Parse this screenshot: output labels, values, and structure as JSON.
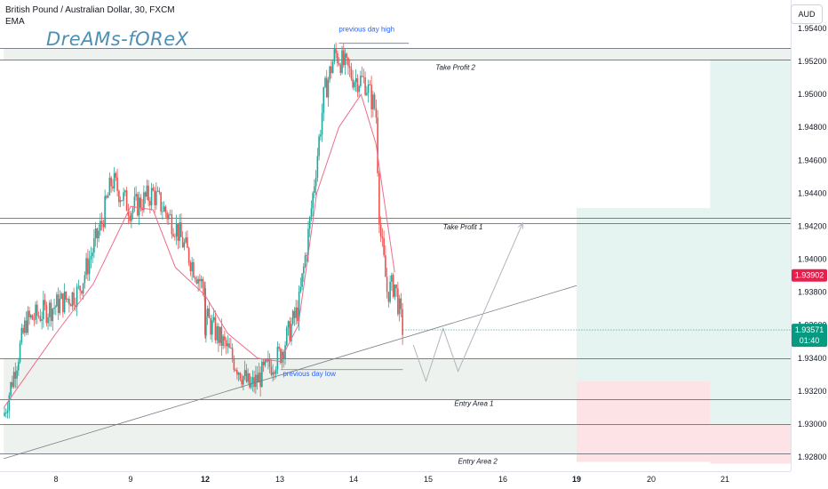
{
  "header": {
    "title": "British Pound / Australian Dollar, 30, FXCM",
    "indicator": "EMA",
    "watermark": "DreAMs-fOReX",
    "currency": "AUD"
  },
  "chart_data": {
    "type": "candlestick",
    "symbol": "GBPAUD",
    "timeframe": "30",
    "x_ticks": [
      {
        "label": "8",
        "day": 8,
        "bold": false
      },
      {
        "label": "9",
        "day": 9,
        "bold": false
      },
      {
        "label": "12",
        "day": 12,
        "bold": true
      },
      {
        "label": "13",
        "day": 13,
        "bold": false
      },
      {
        "label": "14",
        "day": 14,
        "bold": false
      },
      {
        "label": "15",
        "day": 15,
        "bold": false
      },
      {
        "label": "16",
        "day": 16,
        "bold": false
      },
      {
        "label": "19",
        "day": 19,
        "bold": true
      },
      {
        "label": "20",
        "day": 20,
        "bold": false
      },
      {
        "label": "21",
        "day": 21,
        "bold": false
      }
    ],
    "y_ticks": [
      "1.92800",
      "1.93000",
      "1.93200",
      "1.93400",
      "1.93600",
      "1.93800",
      "1.94000",
      "1.94200",
      "1.94400",
      "1.94600",
      "1.94800",
      "1.95000",
      "1.95200",
      "1.95400"
    ],
    "y_range": [
      1.9272,
      1.9548
    ],
    "price_badges": [
      {
        "value": "1.93902",
        "color": "#e91e4d"
      },
      {
        "value": "1.93571",
        "subtext": "01:40",
        "color": "#089981"
      }
    ],
    "horizontal_levels": [
      1.9528,
      1.9521,
      1.9425,
      1.9422,
      1.934,
      1.9315,
      1.93,
      1.9282
    ],
    "labels": [
      {
        "text": "previous day high",
        "day": 13.8,
        "price": 1.9538,
        "color": "#2962ff"
      },
      {
        "text": "previous day low",
        "day": 13.04,
        "price": 1.9329,
        "color": "#2962ff"
      },
      {
        "text": "Take Profit 2",
        "day": 15.1,
        "price": 1.9515,
        "color": "#131722"
      },
      {
        "text": "Take Profit 1",
        "day": 15.2,
        "price": 1.9418,
        "color": "#131722"
      },
      {
        "text": "Entry Area 1",
        "day": 15.35,
        "price": 1.9311,
        "color": "#131722"
      },
      {
        "text": "Entry Area 2",
        "day": 15.4,
        "price": 1.9276,
        "color": "#131722"
      }
    ],
    "zones": [
      {
        "day_from": 7.3,
        "day_to": 21.9,
        "price_from": 1.9521,
        "price_to": 1.9528,
        "color": "#eef2ee"
      },
      {
        "day_from": 7.3,
        "day_to": 21.9,
        "price_from": 1.9315,
        "price_to": 1.934,
        "color": "#eef2ee"
      },
      {
        "day_from": 7.3,
        "day_to": 21.9,
        "price_from": 1.9282,
        "price_to": 1.93,
        "color": "#eef2ee"
      },
      {
        "day_from": 18.95,
        "day_to": 20.8,
        "price_from": 1.9326,
        "price_to": 1.9431,
        "color": "#e6f4f1"
      },
      {
        "day_from": 18.95,
        "day_to": 20.8,
        "price_from": 1.9277,
        "price_to": 1.9326,
        "color": "#fde3e6"
      },
      {
        "day_from": 20.8,
        "day_to": 21.9,
        "price_from": 1.93,
        "price_to": 1.9521,
        "color": "#e6f4f1"
      },
      {
        "day_from": 20.8,
        "day_to": 21.9,
        "price_from": 1.9276,
        "price_to": 1.93,
        "color": "#fde3e6"
      }
    ],
    "trendlines": [
      {
        "from": {
          "day": 7.3,
          "price": 1.9279
        },
        "to": {
          "day": 18.45,
          "price": 1.9384
        },
        "color": "#787b86"
      },
      {
        "from": {
          "day": 13.01,
          "price": 1.9333
        },
        "to": {
          "day": 14.66,
          "price": 1.9333
        },
        "color": "#787b86"
      },
      {
        "from": {
          "day": 13.8,
          "price": 1.9531
        },
        "to": {
          "day": 14.74,
          "price": 1.9531
        },
        "color": "#787b86"
      }
    ],
    "projection_path": [
      {
        "day": 14.8,
        "price": 1.9348
      },
      {
        "day": 14.97,
        "price": 1.9326
      },
      {
        "day": 15.2,
        "price": 1.9358
      },
      {
        "day": 15.4,
        "price": 1.9332
      },
      {
        "day": 16.27,
        "price": 1.9422
      }
    ],
    "ema_anchor_points": [
      {
        "day": 7.3,
        "price": 1.931
      },
      {
        "day": 8.0,
        "price": 1.9355
      },
      {
        "day": 8.5,
        "price": 1.9385
      },
      {
        "day": 9.0,
        "price": 1.9432
      },
      {
        "day": 9.3,
        "price": 1.943
      },
      {
        "day": 9.6,
        "price": 1.9395
      },
      {
        "day": 10.0,
        "price": 1.9378
      },
      {
        "day": 12.3,
        "price": 1.9355
      },
      {
        "day": 12.7,
        "price": 1.934
      },
      {
        "day": 13.0,
        "price": 1.9338
      },
      {
        "day": 13.25,
        "price": 1.936
      },
      {
        "day": 13.5,
        "price": 1.944
      },
      {
        "day": 13.8,
        "price": 1.948
      },
      {
        "day": 14.1,
        "price": 1.95
      },
      {
        "day": 14.3,
        "price": 1.947
      },
      {
        "day": 14.55,
        "price": 1.9392
      }
    ],
    "price_path_anchors": [
      {
        "day": 7.3,
        "price": 1.9305
      },
      {
        "day": 7.6,
        "price": 1.9362
      },
      {
        "day": 8.0,
        "price": 1.9372
      },
      {
        "day": 8.3,
        "price": 1.938
      },
      {
        "day": 8.6,
        "price": 1.942
      },
      {
        "day": 8.75,
        "price": 1.9448
      },
      {
        "day": 9.0,
        "price": 1.943
      },
      {
        "day": 9.3,
        "price": 1.944
      },
      {
        "day": 9.6,
        "price": 1.942
      },
      {
        "day": 10.0,
        "price": 1.938
      },
      {
        "day": 10.3,
        "price": 1.9368
      },
      {
        "day": 10.6,
        "price": 1.936
      },
      {
        "day": 12.0,
        "price": 1.9365
      },
      {
        "day": 12.3,
        "price": 1.9345
      },
      {
        "day": 12.6,
        "price": 1.9322
      },
      {
        "day": 13.0,
        "price": 1.9342
      },
      {
        "day": 13.25,
        "price": 1.937
      },
      {
        "day": 13.4,
        "price": 1.942
      },
      {
        "day": 13.6,
        "price": 1.95
      },
      {
        "day": 13.75,
        "price": 1.9525
      },
      {
        "day": 14.0,
        "price": 1.951
      },
      {
        "day": 14.15,
        "price": 1.9508
      },
      {
        "day": 14.3,
        "price": 1.949
      },
      {
        "day": 14.35,
        "price": 1.942
      },
      {
        "day": 14.45,
        "price": 1.938
      },
      {
        "day": 14.55,
        "price": 1.9385
      },
      {
        "day": 14.66,
        "price": 1.9357
      }
    ]
  }
}
